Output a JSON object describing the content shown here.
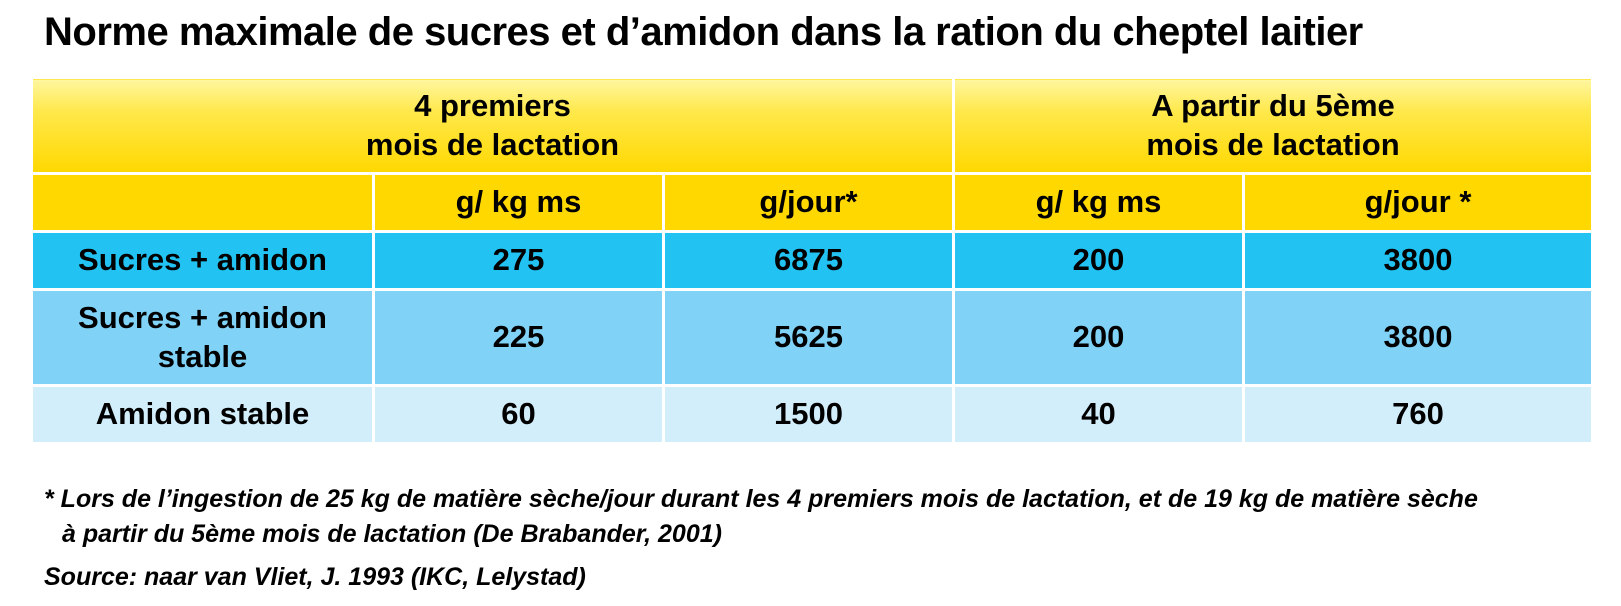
{
  "title": "Norme maximale de sucres et d’amidon dans la ration du cheptel laitier",
  "table": {
    "group_headers": [
      {
        "line1": "4 premiers",
        "line2": "mois de lactation"
      },
      {
        "line1": "A partir du 5ème",
        "line2": "mois de lactation"
      }
    ],
    "sub_headers": [
      "g/ kg ms",
      "g/jour*",
      "g/ kg ms",
      "g/jour *"
    ],
    "rows": [
      {
        "label_line1": "Sucres + amidon",
        "label_line2": "",
        "values": [
          "275",
          "6875",
          "200",
          "3800"
        ]
      },
      {
        "label_line1": "Sucres + amidon",
        "label_line2": "stable",
        "values": [
          "225",
          "5625",
          "200",
          "3800"
        ]
      },
      {
        "label_line1": "Amidon stable",
        "label_line2": "",
        "values": [
          "60",
          "1500",
          "40",
          "760"
        ]
      }
    ],
    "colors": {
      "header_yellow": "#ffd800",
      "row1_blue": "#22c3f2",
      "row2_blue": "#80d3f7",
      "row3_blue": "#d3eefb"
    }
  },
  "footnote": {
    "line1": "* Lors de l’ingestion de 25 kg de matière sèche/jour durant les 4 premiers mois de lactation, et de 19 kg de matière sèche",
    "line2": "à partir du 5ème mois de lactation (De Brabander, 2001)"
  },
  "source": "Source: naar van Vliet, J. 1993 (IKC, Lelystad)"
}
